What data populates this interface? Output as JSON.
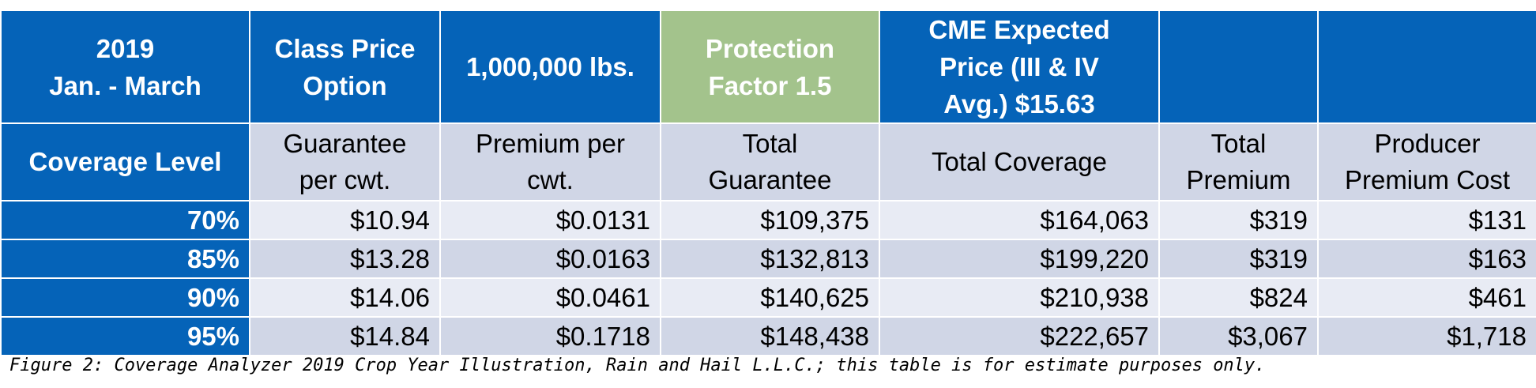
{
  "header": {
    "period_line1": "2019",
    "period_line2": "Jan. - March",
    "option_line1": "Class Price",
    "option_line2": "Option",
    "volume": "1,000,000 lbs.",
    "protection_line1": "Protection",
    "protection_line2": "Factor 1.5",
    "cme_line1": "CME Expected",
    "cme_line2": "Price (III & IV",
    "cme_line3": "Avg.) $15.63",
    "blank1": "",
    "blank2": ""
  },
  "subheader": {
    "coverage_level": "Coverage Level",
    "guarantee_line1": "Guarantee",
    "guarantee_line2": "per cwt.",
    "premium_line1": "Premium per",
    "premium_line2": "cwt.",
    "total_guarantee_line1": "Total",
    "total_guarantee_line2": "Guarantee",
    "total_coverage": "Total Coverage",
    "total_premium_line1": "Total",
    "total_premium_line2": "Premium",
    "producer_line1": "Producer",
    "producer_line2": "Premium Cost"
  },
  "rows": [
    {
      "level": "70%",
      "guarantee": "$10.94",
      "premium": "$0.0131",
      "total_guarantee": "$109,375",
      "total_coverage": "$164,063",
      "total_premium": "$319",
      "producer_cost": "$131"
    },
    {
      "level": "85%",
      "guarantee": "$13.28",
      "premium": "$0.0163",
      "total_guarantee": "$132,813",
      "total_coverage": "$199,220",
      "total_premium": "$319",
      "producer_cost": "$163"
    },
    {
      "level": "90%",
      "guarantee": "$14.06",
      "premium": "$0.0461",
      "total_guarantee": "$140,625",
      "total_coverage": "$210,938",
      "total_premium": "$824",
      "producer_cost": "$461"
    },
    {
      "level": "95%",
      "guarantee": "$14.84",
      "premium": "$0.1718",
      "total_guarantee": "$148,438",
      "total_coverage": "$222,657",
      "total_premium": "$3,067",
      "producer_cost": "$1,718"
    }
  ],
  "caption": "Figure 2: Coverage Analyzer 2019 Crop Year Illustration, Rain and Hail L.L.C.; this table is for estimate purposes only.",
  "colors": {
    "header_blue": "#0563b8",
    "header_green": "#a3c38c",
    "row_light": "#e8ebf4",
    "row_mid": "#d0d6e6"
  }
}
